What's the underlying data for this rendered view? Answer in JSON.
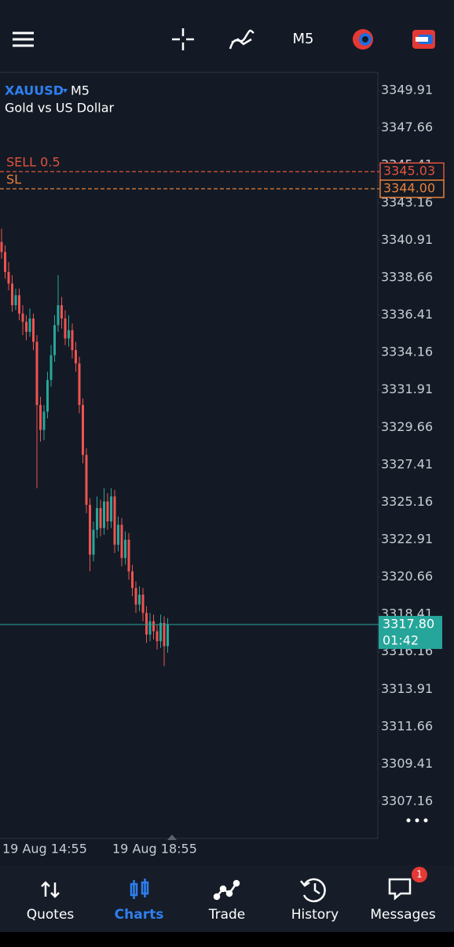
{
  "top_bar": {
    "timeframe": "M5"
  },
  "chart": {
    "symbol": "XAUUSD",
    "timeframe": "M5",
    "description": "Gold vs US Dollar",
    "ylim": [
      3304.94,
      3351.0
    ],
    "yticks": [
      3349.91,
      3347.66,
      3345.41,
      3343.16,
      3340.91,
      3338.66,
      3336.41,
      3334.16,
      3331.91,
      3329.66,
      3327.41,
      3325.16,
      3322.91,
      3320.66,
      3318.41,
      3316.16,
      3313.91,
      3311.66,
      3309.41,
      3307.16
    ],
    "up_color": "#26a69a",
    "down_color": "#ef5350",
    "candles": [
      [
        3340.8,
        3341.6,
        3339.8,
        3340.2
      ],
      [
        3340.2,
        3340.6,
        3338.6,
        3339.0
      ],
      [
        3339.0,
        3339.6,
        3337.9,
        3338.3
      ],
      [
        3338.3,
        3338.8,
        3336.6,
        3337.0
      ],
      [
        3337.0,
        3338.0,
        3336.7,
        3337.6
      ],
      [
        3337.6,
        3338.0,
        3336.1,
        3336.5
      ],
      [
        3336.5,
        3337.0,
        3335.2,
        3336.0
      ],
      [
        3336.0,
        3336.4,
        3334.9,
        3335.4
      ],
      [
        3335.4,
        3336.8,
        3335.1,
        3336.2
      ],
      [
        3336.2,
        3336.5,
        3334.3,
        3334.8
      ],
      [
        3334.8,
        3335.2,
        3326.0,
        3331.0
      ],
      [
        3331.0,
        3331.5,
        3328.8,
        3329.5
      ],
      [
        3329.5,
        3331.0,
        3328.9,
        3330.6
      ],
      [
        3330.6,
        3333.0,
        3330.2,
        3332.5
      ],
      [
        3332.5,
        3334.6,
        3332.1,
        3334.0
      ],
      [
        3334.0,
        3336.4,
        3333.6,
        3335.8
      ],
      [
        3335.8,
        3338.8,
        3335.4,
        3337.0
      ],
      [
        3337.0,
        3337.5,
        3335.6,
        3336.2
      ],
      [
        3336.2,
        3336.7,
        3334.6,
        3335.0
      ],
      [
        3335.0,
        3336.4,
        3334.5,
        3335.5
      ],
      [
        3335.5,
        3335.9,
        3333.8,
        3334.3
      ],
      [
        3334.3,
        3334.8,
        3333.0,
        3333.5
      ],
      [
        3333.5,
        3333.9,
        3330.5,
        3331.0
      ],
      [
        3331.0,
        3331.4,
        3327.5,
        3328.0
      ],
      [
        3328.0,
        3328.4,
        3324.5,
        3325.0
      ],
      [
        3325.0,
        3325.4,
        3321.0,
        3322.0
      ],
      [
        3322.0,
        3324.0,
        3321.6,
        3323.5
      ],
      [
        3323.5,
        3325.5,
        3323.0,
        3324.8
      ],
      [
        3324.8,
        3325.3,
        3323.1,
        3323.6
      ],
      [
        3323.6,
        3326.0,
        3323.2,
        3325.2
      ],
      [
        3325.2,
        3325.7,
        3323.5,
        3324.0
      ],
      [
        3324.0,
        3326.0,
        3323.6,
        3325.5
      ],
      [
        3325.5,
        3325.9,
        3322.1,
        3322.6
      ],
      [
        3322.6,
        3324.3,
        3322.2,
        3323.8
      ],
      [
        3323.8,
        3324.2,
        3321.3,
        3321.8
      ],
      [
        3321.8,
        3323.4,
        3321.4,
        3322.9
      ],
      [
        3322.9,
        3323.3,
        3320.5,
        3321.0
      ],
      [
        3321.0,
        3321.4,
        3319.5,
        3320.0
      ],
      [
        3320.0,
        3320.4,
        3318.5,
        3319.0
      ],
      [
        3319.0,
        3320.1,
        3318.6,
        3319.6
      ],
      [
        3319.6,
        3320.0,
        3318.0,
        3318.5
      ],
      [
        3318.5,
        3318.9,
        3316.7,
        3317.2
      ],
      [
        3317.2,
        3318.5,
        3316.8,
        3318.0
      ],
      [
        3318.0,
        3318.4,
        3316.9,
        3317.4
      ],
      [
        3317.4,
        3317.8,
        3316.3,
        3316.8
      ],
      [
        3316.8,
        3318.4,
        3316.4,
        3317.9
      ],
      [
        3317.9,
        3318.3,
        3315.3,
        3316.5
      ],
      [
        3316.5,
        3318.2,
        3316.1,
        3317.8
      ]
    ],
    "orders": [
      {
        "label": "SELL 0.5",
        "color": "#e0533b",
        "price": {
          "value": 3345.03,
          "label": "3345.03"
        }
      },
      {
        "label": "SL",
        "color": "#e8803a",
        "price": {
          "value": 3344.0,
          "label": "3344.00"
        }
      }
    ],
    "current": {
      "color": "#26a69a",
      "price": {
        "value": 3317.8,
        "label": "3317.80"
      },
      "countdown": "01:42"
    },
    "x_labels": [
      "19 Aug 14:55",
      "19 Aug 18:55"
    ]
  },
  "bottom_nav": {
    "items": [
      {
        "label": "Quotes"
      },
      {
        "label": "Charts"
      },
      {
        "label": "Trade"
      },
      {
        "label": "History"
      },
      {
        "label": "Messages"
      }
    ],
    "badge": "1"
  }
}
